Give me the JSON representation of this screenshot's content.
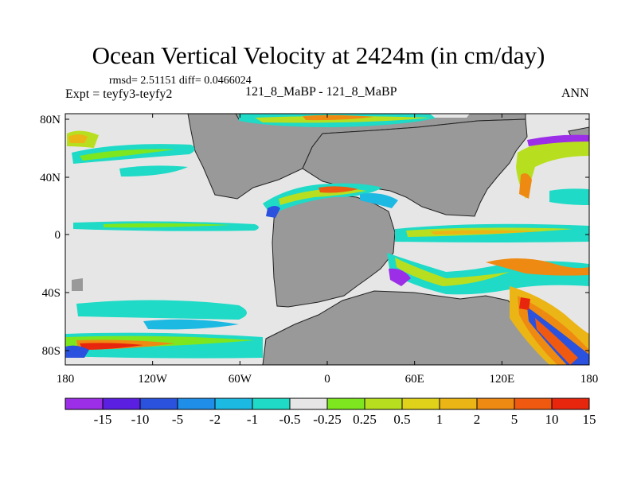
{
  "header": {
    "title": "Ocean Vertical Velocity at 2424m (in cm/day)",
    "stats": "rmsd= 2.51151 diff= 0.0466024",
    "expt": "Expt = teyfy3-teyfy2",
    "case": "121_8_MaBP - 121_8_MaBP",
    "season": "ANN"
  },
  "chart_data": {
    "type": "heatmap",
    "title": "Ocean Vertical Velocity at 2424m (in cm/day)",
    "xlabel": "",
    "ylabel": "",
    "x_ticks": [
      "180",
      "120W",
      "60W",
      "0",
      "60E",
      "120E",
      "180"
    ],
    "y_ticks": [
      "80N",
      "40N",
      "0",
      "40S",
      "80S"
    ],
    "xlim": [
      -180,
      180
    ],
    "ylim": [
      -90,
      90
    ],
    "land_color": "#999999",
    "colorbar": {
      "levels": [
        "-15",
        "-10",
        "-5",
        "-2",
        "-1",
        "-0.5",
        "-0.25",
        "0.25",
        "0.5",
        "1",
        "2",
        "5",
        "10",
        "15"
      ],
      "colors": [
        "#9b2ee6",
        "#5a1fe0",
        "#2a52de",
        "#1f8ee8",
        "#1cb9e3",
        "#1edac6",
        "#e6e6e6",
        "#7ee61f",
        "#b8df1f",
        "#e0d21a",
        "#ecb516",
        "#ee8a12",
        "#ef5a10",
        "#e8250d"
      ]
    }
  }
}
